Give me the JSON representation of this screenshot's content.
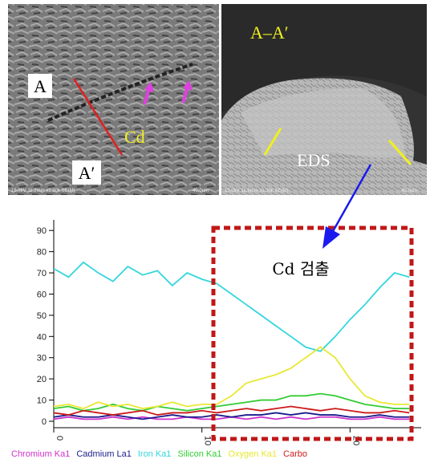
{
  "micrographs": {
    "left": {
      "labels": [
        "A",
        "A′",
        "Cd"
      ],
      "info": "15.0kV 11.2mm x1.30k SE(M)",
      "scale": "40.0um"
    },
    "right": {
      "labels": [
        "A–A′",
        "EDS"
      ],
      "info": "15.0kV 11.6mm x1.30k SE(M)",
      "scale": "40.0um"
    }
  },
  "chart_data": {
    "type": "line",
    "annotation": "Cd 검출",
    "x": [
      0,
      1,
      2,
      3,
      4,
      5,
      6,
      7,
      8,
      9,
      10,
      11,
      12,
      13,
      14,
      15,
      16,
      17,
      18,
      19,
      20,
      21,
      22,
      23,
      24
    ],
    "xlim": [
      0,
      24.8
    ],
    "xticks": [
      0,
      10,
      20
    ],
    "ylim": [
      0,
      95
    ],
    "yticks": [
      0,
      10,
      20,
      30,
      40,
      50,
      60,
      70,
      80,
      90
    ],
    "series": [
      {
        "name": "Chromium Ka1",
        "color": "#cc33cc",
        "values": [
          1,
          2,
          1,
          1,
          2,
          1,
          2,
          1,
          1,
          2,
          1,
          1,
          2,
          1,
          2,
          1,
          2,
          1,
          2,
          2,
          1,
          1,
          2,
          1,
          1
        ]
      },
      {
        "name": "Cadmium La1",
        "color": "#1a1a8c",
        "values": [
          2,
          3,
          2,
          2,
          3,
          2,
          1,
          2,
          3,
          2,
          2,
          3,
          2,
          3,
          3,
          4,
          3,
          4,
          3,
          3,
          2,
          2,
          3,
          2,
          2
        ]
      },
      {
        "name": "Iron Ka1",
        "color": "#33d6dd",
        "values": [
          72,
          68,
          75,
          70,
          66,
          73,
          69,
          71,
          64,
          70,
          67,
          65,
          60,
          55,
          50,
          45,
          40,
          35,
          33,
          40,
          48,
          55,
          63,
          70,
          68
        ]
      },
      {
        "name": "Silicon Ka1",
        "color": "#33cc33",
        "values": [
          6,
          7,
          5,
          6,
          8,
          6,
          5,
          7,
          6,
          5,
          6,
          7,
          8,
          9,
          10,
          10,
          12,
          12,
          13,
          12,
          10,
          8,
          7,
          6,
          6
        ]
      },
      {
        "name": "Oxygen Ka1",
        "color": "#e8e833",
        "values": [
          7,
          8,
          6,
          9,
          7,
          8,
          6,
          7,
          9,
          7,
          8,
          8,
          12,
          18,
          20,
          22,
          25,
          30,
          35,
          30,
          20,
          12,
          9,
          8,
          8
        ]
      },
      {
        "name": "Carbo",
        "color": "#cc1a1a",
        "values": [
          4,
          3,
          5,
          4,
          3,
          4,
          5,
          3,
          4,
          4,
          5,
          4,
          5,
          6,
          5,
          6,
          7,
          6,
          5,
          6,
          5,
          4,
          4,
          5,
          4
        ]
      }
    ]
  }
}
